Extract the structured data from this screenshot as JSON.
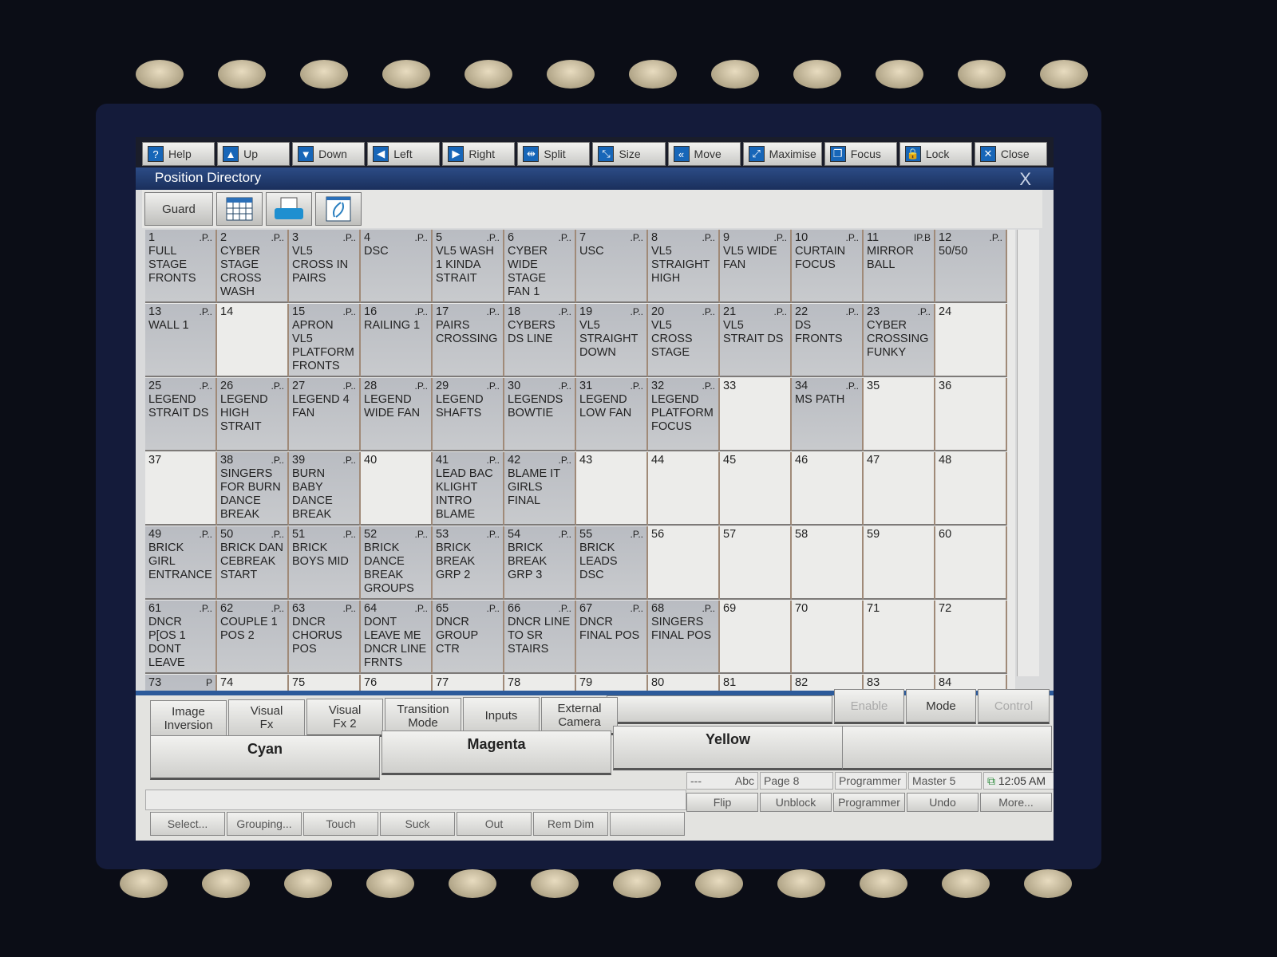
{
  "toolbar": [
    {
      "label": "Help",
      "icon": "?"
    },
    {
      "label": "Up",
      "icon": "▲"
    },
    {
      "label": "Down",
      "icon": "▼"
    },
    {
      "label": "Left",
      "icon": "◀"
    },
    {
      "label": "Right",
      "icon": "▶"
    },
    {
      "label": "Split",
      "icon": "⇹"
    },
    {
      "label": "Size",
      "icon": "⤡"
    },
    {
      "label": "Move",
      "icon": "«"
    },
    {
      "label": "Maximise",
      "icon": "⤢"
    },
    {
      "label": "Focus",
      "icon": "❐"
    },
    {
      "label": "Lock",
      "icon": "🔒"
    },
    {
      "label": "Close",
      "icon": "✕"
    }
  ],
  "window": {
    "title": "Position Directory",
    "close": "X"
  },
  "subbar": {
    "guard": "Guard",
    "icons": [
      "grid-view-icon",
      "print-icon",
      "refresh-icon"
    ]
  },
  "cells": [
    {
      "n": "1",
      "f": ".P..",
      "t": "FULL STAGE FRONTS"
    },
    {
      "n": "2",
      "f": ".P..",
      "t": "CYBER STAGE CROSS WASH"
    },
    {
      "n": "3",
      "f": ".P..",
      "t": "VL5 CROSS IN PAIRS"
    },
    {
      "n": "4",
      "f": ".P..",
      "t": "DSC"
    },
    {
      "n": "5",
      "f": ".P..",
      "t": "VL5 WASH 1 KINDA STRAIT"
    },
    {
      "n": "6",
      "f": ".P..",
      "t": "CYBER WIDE STAGE FAN 1"
    },
    {
      "n": "7",
      "f": ".P..",
      "t": "USC"
    },
    {
      "n": "8",
      "f": ".P..",
      "t": "VL5 STRAIGHT HIGH"
    },
    {
      "n": "9",
      "f": ".P..",
      "t": "VL5 WIDE FAN"
    },
    {
      "n": "10",
      "f": ".P..",
      "t": "CURTAIN FOCUS"
    },
    {
      "n": "11",
      "f": "IP.B",
      "t": "MIRROR BALL"
    },
    {
      "n": "12",
      "f": ".P..",
      "t": "50/50"
    },
    {
      "n": "13",
      "f": ".P..",
      "t": "WALL 1"
    },
    {
      "n": "14",
      "f": "",
      "t": ""
    },
    {
      "n": "15",
      "f": ".P..",
      "t": "APRON VL5 PLATFORM FRONTS"
    },
    {
      "n": "16",
      "f": ".P..",
      "t": "RAILING 1"
    },
    {
      "n": "17",
      "f": ".P..",
      "t": "PAIRS CROSSING"
    },
    {
      "n": "18",
      "f": ".P..",
      "t": "CYBERS DS LINE"
    },
    {
      "n": "19",
      "f": ".P..",
      "t": "VL5 STRAIGHT DOWN"
    },
    {
      "n": "20",
      "f": ".P..",
      "t": "VL5 CROSS STAGE"
    },
    {
      "n": "21",
      "f": ".P..",
      "t": "VL5 STRAIT DS"
    },
    {
      "n": "22",
      "f": ".P..",
      "t": "DS FRONTS"
    },
    {
      "n": "23",
      "f": ".P..",
      "t": "CYBER CROSSING FUNKY"
    },
    {
      "n": "24",
      "f": "",
      "t": ""
    },
    {
      "n": "25",
      "f": ".P..",
      "t": "LEGEND STRAIT DS"
    },
    {
      "n": "26",
      "f": ".P..",
      "t": "LEGEND HIGH STRAIT"
    },
    {
      "n": "27",
      "f": ".P..",
      "t": "LEGEND 4 FAN"
    },
    {
      "n": "28",
      "f": ".P..",
      "t": "LEGEND WIDE FAN"
    },
    {
      "n": "29",
      "f": ".P..",
      "t": "LEGEND SHAFTS"
    },
    {
      "n": "30",
      "f": ".P..",
      "t": "LEGENDS BOWTIE"
    },
    {
      "n": "31",
      "f": ".P..",
      "t": "LEGEND LOW FAN"
    },
    {
      "n": "32",
      "f": ".P..",
      "t": "LEGEND PLATFORM FOCUS"
    },
    {
      "n": "33",
      "f": "",
      "t": ""
    },
    {
      "n": "34",
      "f": ".P..",
      "t": "MS PATH"
    },
    {
      "n": "35",
      "f": "",
      "t": ""
    },
    {
      "n": "36",
      "f": "",
      "t": ""
    },
    {
      "n": "37",
      "f": "",
      "t": ""
    },
    {
      "n": "38",
      "f": ".P..",
      "t": "SINGERS FOR BURN DANCE BREAK"
    },
    {
      "n": "39",
      "f": ".P..",
      "t": "BURN BABY DANCE BREAK"
    },
    {
      "n": "40",
      "f": "",
      "t": ""
    },
    {
      "n": "41",
      "f": ".P..",
      "t": "LEAD BAC KLIGHT INTRO BLAME"
    },
    {
      "n": "42",
      "f": ".P..",
      "t": "BLAME IT GIRLS FINAL"
    },
    {
      "n": "43",
      "f": "",
      "t": ""
    },
    {
      "n": "44",
      "f": "",
      "t": ""
    },
    {
      "n": "45",
      "f": "",
      "t": ""
    },
    {
      "n": "46",
      "f": "",
      "t": ""
    },
    {
      "n": "47",
      "f": "",
      "t": ""
    },
    {
      "n": "48",
      "f": "",
      "t": ""
    },
    {
      "n": "49",
      "f": ".P..",
      "t": "BRICK GIRL ENTRANCE"
    },
    {
      "n": "50",
      "f": ".P..",
      "t": "BRICK DAN CEBREAK START"
    },
    {
      "n": "51",
      "f": ".P..",
      "t": "BRICK BOYS MID"
    },
    {
      "n": "52",
      "f": ".P..",
      "t": "BRICK DANCE BREAK GROUPS"
    },
    {
      "n": "53",
      "f": ".P..",
      "t": "BRICK BREAK GRP 2"
    },
    {
      "n": "54",
      "f": ".P..",
      "t": "BRICK BREAK GRP 3"
    },
    {
      "n": "55",
      "f": ".P..",
      "t": "BRICK LEADS DSC"
    },
    {
      "n": "56",
      "f": "",
      "t": ""
    },
    {
      "n": "57",
      "f": "",
      "t": ""
    },
    {
      "n": "58",
      "f": "",
      "t": ""
    },
    {
      "n": "59",
      "f": "",
      "t": ""
    },
    {
      "n": "60",
      "f": "",
      "t": ""
    },
    {
      "n": "61",
      "f": ".P..",
      "t": "DNCR P[OS 1 DONT LEAVE"
    },
    {
      "n": "62",
      "f": ".P..",
      "t": "COUPLE 1 POS 2"
    },
    {
      "n": "63",
      "f": ".P..",
      "t": "DNCR CHORUS POS"
    },
    {
      "n": "64",
      "f": ".P..",
      "t": "DONT LEAVE ME DNCR LINE FRNTS"
    },
    {
      "n": "65",
      "f": ".P..",
      "t": "DNCR GROUP CTR"
    },
    {
      "n": "66",
      "f": ".P..",
      "t": "DNCR LINE TO SR STAIRS"
    },
    {
      "n": "67",
      "f": ".P..",
      "t": "DNCR FINAL POS"
    },
    {
      "n": "68",
      "f": ".P..",
      "t": "SINGERS FINAL POS"
    },
    {
      "n": "69",
      "f": "",
      "t": ""
    },
    {
      "n": "70",
      "f": "",
      "t": ""
    },
    {
      "n": "71",
      "f": "",
      "t": ""
    },
    {
      "n": "72",
      "f": "",
      "t": ""
    },
    {
      "n": "73",
      "f": "P",
      "t": ""
    },
    {
      "n": "74",
      "f": "",
      "t": ""
    },
    {
      "n": "75",
      "f": "",
      "t": ""
    },
    {
      "n": "76",
      "f": "",
      "t": ""
    },
    {
      "n": "77",
      "f": "",
      "t": ""
    },
    {
      "n": "78",
      "f": "",
      "t": ""
    },
    {
      "n": "79",
      "f": "",
      "t": ""
    },
    {
      "n": "80",
      "f": "",
      "t": ""
    },
    {
      "n": "81",
      "f": "",
      "t": ""
    },
    {
      "n": "82",
      "f": "",
      "t": ""
    },
    {
      "n": "83",
      "f": "",
      "t": ""
    },
    {
      "n": "84",
      "f": "",
      "t": ""
    }
  ],
  "softkeys": {
    "row1": [
      "Image\nInversion",
      "Visual\nFx",
      "Visual\nFx 2",
      "Transition\nMode",
      "Inputs",
      "External\nCamera"
    ],
    "enable": "Enable",
    "mode": "Mode",
    "control": "Control",
    "colors": [
      "Cyan",
      "Magenta",
      "Yellow"
    ]
  },
  "status": {
    "dashes": "---",
    "abc": "Abc",
    "page": "Page 8",
    "programmer": "Programmer",
    "master": "Master 5",
    "time": "12:05 AM"
  },
  "bottom_right": [
    "Flip",
    "Unblock",
    "Programmer",
    "Undo",
    "More..."
  ],
  "bottom_left": [
    "Select...",
    "Grouping...",
    "Touch",
    "Suck",
    "Out",
    "Rem Dim",
    ""
  ]
}
